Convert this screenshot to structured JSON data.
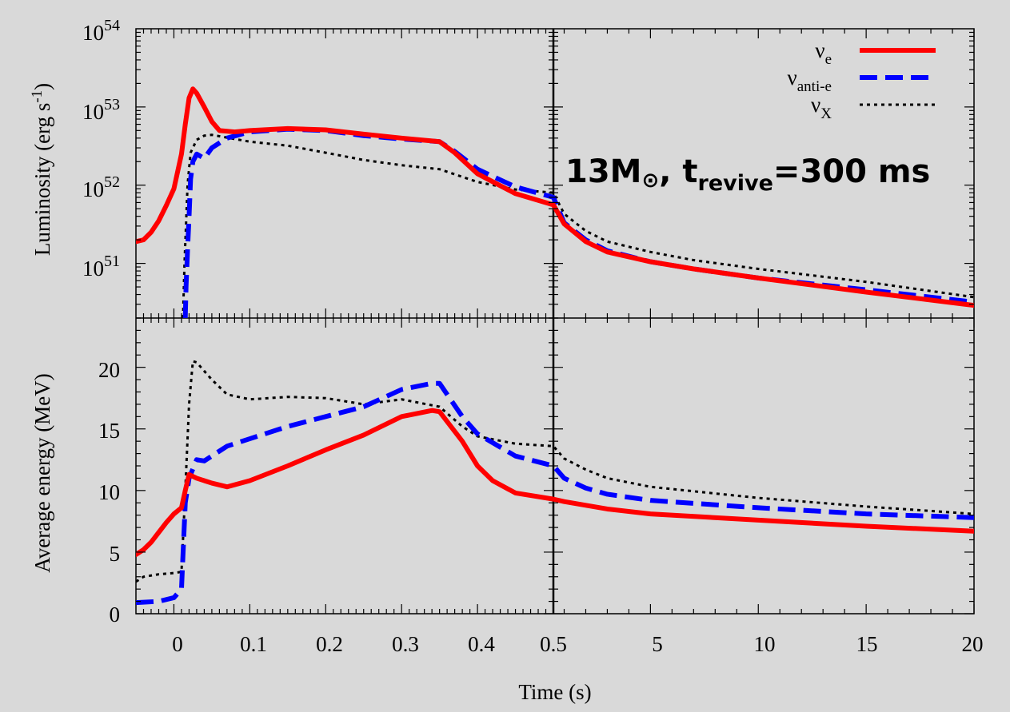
{
  "figure": {
    "annotation": {
      "prefix": "13M",
      "sun": "⊙",
      "mid": ", t",
      "sub": "revive",
      "suffix": "=300 ms"
    },
    "xlabel": "Time (s)"
  },
  "colors": {
    "nu_e": "#ff0000",
    "nu_anti_e": "#0000ff",
    "nu_x": "#000000",
    "background": "#d9d9d9"
  },
  "chart_data": {
    "type": "line",
    "xlabel": "Time (s)",
    "x_axis": {
      "left_segment": {
        "range": [
          -0.05,
          0.5
        ],
        "ticks": [
          0,
          0.1,
          0.2,
          0.3,
          0.4,
          0.5
        ],
        "tick_labels": [
          "0",
          "0.1",
          "0.2",
          "0.3",
          "0.4",
          "0.5"
        ]
      },
      "right_segment": {
        "range": [
          0.5,
          20
        ],
        "ticks": [
          5,
          10,
          15,
          20
        ],
        "tick_labels": [
          "5",
          "10",
          "15",
          "20"
        ]
      }
    },
    "legend": {
      "placement": "top-right",
      "entries": [
        {
          "base": "ν",
          "sub": "e",
          "series": "nu_e"
        },
        {
          "base": "ν",
          "sub": "anti-e",
          "series": "nu_anti_e"
        },
        {
          "base": "ν",
          "sub": "X",
          "series": "nu_x"
        }
      ]
    },
    "panels": [
      {
        "id": "luminosity",
        "ylabel": {
          "text": "Luminosity (erg s",
          "sup": "-1",
          "close": ")"
        },
        "yscale": "log",
        "ylim": [
          2e+50,
          1e+54
        ],
        "ticks": [
          {
            "base": "10",
            "exp": "51",
            "value": 1e+51
          },
          {
            "base": "10",
            "exp": "52",
            "value": 1e+52
          },
          {
            "base": "10",
            "exp": "53",
            "value": 1e+53
          },
          {
            "base": "10",
            "exp": "54",
            "value": 1e+54
          }
        ],
        "series": [
          {
            "key": "nu_e",
            "style": "solid",
            "points": [
              [
                -0.05,
                1.9e+51
              ],
              [
                -0.04,
                2e+51
              ],
              [
                -0.03,
                2.5e+51
              ],
              [
                -0.02,
                3.5e+51
              ],
              [
                -0.01,
                5.5e+51
              ],
              [
                0.0,
                9e+51
              ],
              [
                0.01,
                2.5e+52
              ],
              [
                0.015,
                6e+52
              ],
              [
                0.02,
                1.3e+53
              ],
              [
                0.025,
                1.7e+53
              ],
              [
                0.03,
                1.5e+53
              ],
              [
                0.04,
                1e+53
              ],
              [
                0.05,
                6.5e+52
              ],
              [
                0.06,
                5e+52
              ],
              [
                0.08,
                4.8e+52
              ],
              [
                0.1,
                5e+52
              ],
              [
                0.15,
                5.3e+52
              ],
              [
                0.2,
                5.1e+52
              ],
              [
                0.25,
                4.5e+52
              ],
              [
                0.3,
                4e+52
              ],
              [
                0.35,
                3.6e+52
              ],
              [
                0.37,
                2.6e+52
              ],
              [
                0.4,
                1.4e+52
              ],
              [
                0.45,
                7.8e+51
              ],
              [
                0.5,
                5.6e+51
              ],
              [
                1,
                3.2e+51
              ],
              [
                2,
                1.9e+51
              ],
              [
                3,
                1.4e+51
              ],
              [
                5,
                1.05e+51
              ],
              [
                7,
                8.5e+50
              ],
              [
                10,
                6.5e+50
              ],
              [
                15,
                4.3e+50
              ],
              [
                20,
                2.9e+50
              ]
            ]
          },
          {
            "key": "nu_anti_e",
            "style": "dashed",
            "points": [
              [
                0.015,
                2e+50
              ],
              [
                0.016,
                5e+50
              ],
              [
                0.018,
                1.5e+51
              ],
              [
                0.02,
                4e+51
              ],
              [
                0.022,
                1.2e+52
              ],
              [
                0.025,
                2e+52
              ],
              [
                0.03,
                2.5e+52
              ],
              [
                0.04,
                2.2e+52
              ],
              [
                0.05,
                3e+52
              ],
              [
                0.07,
                4e+52
              ],
              [
                0.1,
                4.8e+52
              ],
              [
                0.15,
                5.2e+52
              ],
              [
                0.2,
                5e+52
              ],
              [
                0.25,
                4.3e+52
              ],
              [
                0.3,
                3.9e+52
              ],
              [
                0.35,
                3.6e+52
              ],
              [
                0.37,
                2.7e+52
              ],
              [
                0.4,
                1.6e+52
              ],
              [
                0.45,
                9.5e+51
              ],
              [
                0.5,
                7e+51
              ],
              [
                1,
                3.3e+51
              ],
              [
                2,
                2e+51
              ],
              [
                3,
                1.45e+51
              ],
              [
                5,
                1.05e+51
              ],
              [
                7,
                8.5e+50
              ],
              [
                10,
                6.5e+50
              ],
              [
                15,
                4.6e+50
              ],
              [
                20,
                3.2e+50
              ]
            ]
          },
          {
            "key": "nu_x",
            "style": "dotted",
            "points": [
              [
                0.012,
                2e+50
              ],
              [
                0.014,
                1e+51
              ],
              [
                0.018,
                1e+52
              ],
              [
                0.022,
                2.6e+52
              ],
              [
                0.03,
                3.8e+52
              ],
              [
                0.04,
                4.3e+52
              ],
              [
                0.05,
                4.4e+52
              ],
              [
                0.08,
                3.9e+52
              ],
              [
                0.1,
                3.6e+52
              ],
              [
                0.15,
                3.2e+52
              ],
              [
                0.2,
                2.6e+52
              ],
              [
                0.25,
                2.1e+52
              ],
              [
                0.3,
                1.8e+52
              ],
              [
                0.35,
                1.6e+52
              ],
              [
                0.4,
                1.1e+52
              ],
              [
                0.45,
                8.8e+51
              ],
              [
                0.5,
                8e+51
              ],
              [
                1,
                4.3e+51
              ],
              [
                2,
                2.6e+51
              ],
              [
                3,
                1.9e+51
              ],
              [
                5,
                1.4e+51
              ],
              [
                7,
                1.1e+51
              ],
              [
                10,
                8.5e+50
              ],
              [
                15,
                5.8e+50
              ],
              [
                20,
                3.7e+50
              ]
            ]
          }
        ]
      },
      {
        "id": "average_energy",
        "ylabel": {
          "text": "Average energy (MeV)"
        },
        "yscale": "linear",
        "ylim": [
          0,
          24
        ],
        "ticks": [
          {
            "base": "0",
            "value": 0
          },
          {
            "base": "5",
            "value": 5
          },
          {
            "base": "10",
            "value": 10
          },
          {
            "base": "15",
            "value": 15
          },
          {
            "base": "20",
            "value": 20
          }
        ],
        "series": [
          {
            "key": "nu_e",
            "style": "solid",
            "points": [
              [
                -0.05,
                4.8
              ],
              [
                -0.04,
                5.2
              ],
              [
                -0.03,
                5.8
              ],
              [
                -0.02,
                6.6
              ],
              [
                -0.01,
                7.4
              ],
              [
                0.0,
                8.1
              ],
              [
                0.01,
                8.6
              ],
              [
                0.015,
                10.0
              ],
              [
                0.02,
                11.3
              ],
              [
                0.03,
                11.0
              ],
              [
                0.05,
                10.6
              ],
              [
                0.07,
                10.3
              ],
              [
                0.1,
                10.8
              ],
              [
                0.15,
                12.0
              ],
              [
                0.2,
                13.3
              ],
              [
                0.25,
                14.5
              ],
              [
                0.3,
                16.0
              ],
              [
                0.34,
                16.5
              ],
              [
                0.35,
                16.4
              ],
              [
                0.38,
                14.0
              ],
              [
                0.4,
                12.0
              ],
              [
                0.42,
                10.8
              ],
              [
                0.45,
                9.8
              ],
              [
                0.5,
                9.3
              ],
              [
                1,
                9.1
              ],
              [
                2,
                8.8
              ],
              [
                3,
                8.5
              ],
              [
                5,
                8.1
              ],
              [
                10,
                7.6
              ],
              [
                15,
                7.1
              ],
              [
                20,
                6.7
              ]
            ]
          },
          {
            "key": "nu_anti_e",
            "style": "dashed",
            "points": [
              [
                -0.05,
                0.9
              ],
              [
                -0.02,
                1.0
              ],
              [
                0.0,
                1.3
              ],
              [
                0.01,
                2.0
              ],
              [
                0.015,
                9.0
              ],
              [
                0.02,
                11.0
              ],
              [
                0.03,
                12.5
              ],
              [
                0.04,
                12.4
              ],
              [
                0.05,
                12.8
              ],
              [
                0.07,
                13.6
              ],
              [
                0.1,
                14.2
              ],
              [
                0.15,
                15.2
              ],
              [
                0.2,
                16.0
              ],
              [
                0.25,
                16.8
              ],
              [
                0.3,
                18.2
              ],
              [
                0.34,
                18.7
              ],
              [
                0.35,
                18.7
              ],
              [
                0.38,
                16.0
              ],
              [
                0.4,
                14.6
              ],
              [
                0.45,
                12.8
              ],
              [
                0.5,
                12.0
              ],
              [
                1,
                11.0
              ],
              [
                2,
                10.2
              ],
              [
                3,
                9.7
              ],
              [
                5,
                9.2
              ],
              [
                10,
                8.6
              ],
              [
                15,
                8.1
              ],
              [
                20,
                7.8
              ]
            ]
          },
          {
            "key": "nu_x",
            "style": "dotted",
            "points": [
              [
                -0.05,
                2.6
              ],
              [
                -0.04,
                3.0
              ],
              [
                -0.02,
                3.2
              ],
              [
                0.0,
                3.3
              ],
              [
                0.01,
                3.4
              ],
              [
                0.015,
                10.0
              ],
              [
                0.02,
                17.0
              ],
              [
                0.025,
                20.5
              ],
              [
                0.03,
                20.4
              ],
              [
                0.05,
                19.0
              ],
              [
                0.07,
                17.8
              ],
              [
                0.1,
                17.4
              ],
              [
                0.15,
                17.6
              ],
              [
                0.2,
                17.5
              ],
              [
                0.25,
                17.0
              ],
              [
                0.3,
                17.4
              ],
              [
                0.35,
                16.8
              ],
              [
                0.38,
                15.2
              ],
              [
                0.4,
                14.4
              ],
              [
                0.45,
                13.8
              ],
              [
                0.5,
                13.6
              ],
              [
                1,
                12.6
              ],
              [
                2,
                11.7
              ],
              [
                3,
                11.0
              ],
              [
                5,
                10.3
              ],
              [
                10,
                9.4
              ],
              [
                15,
                8.7
              ],
              [
                20,
                8.1
              ]
            ]
          }
        ]
      }
    ]
  }
}
